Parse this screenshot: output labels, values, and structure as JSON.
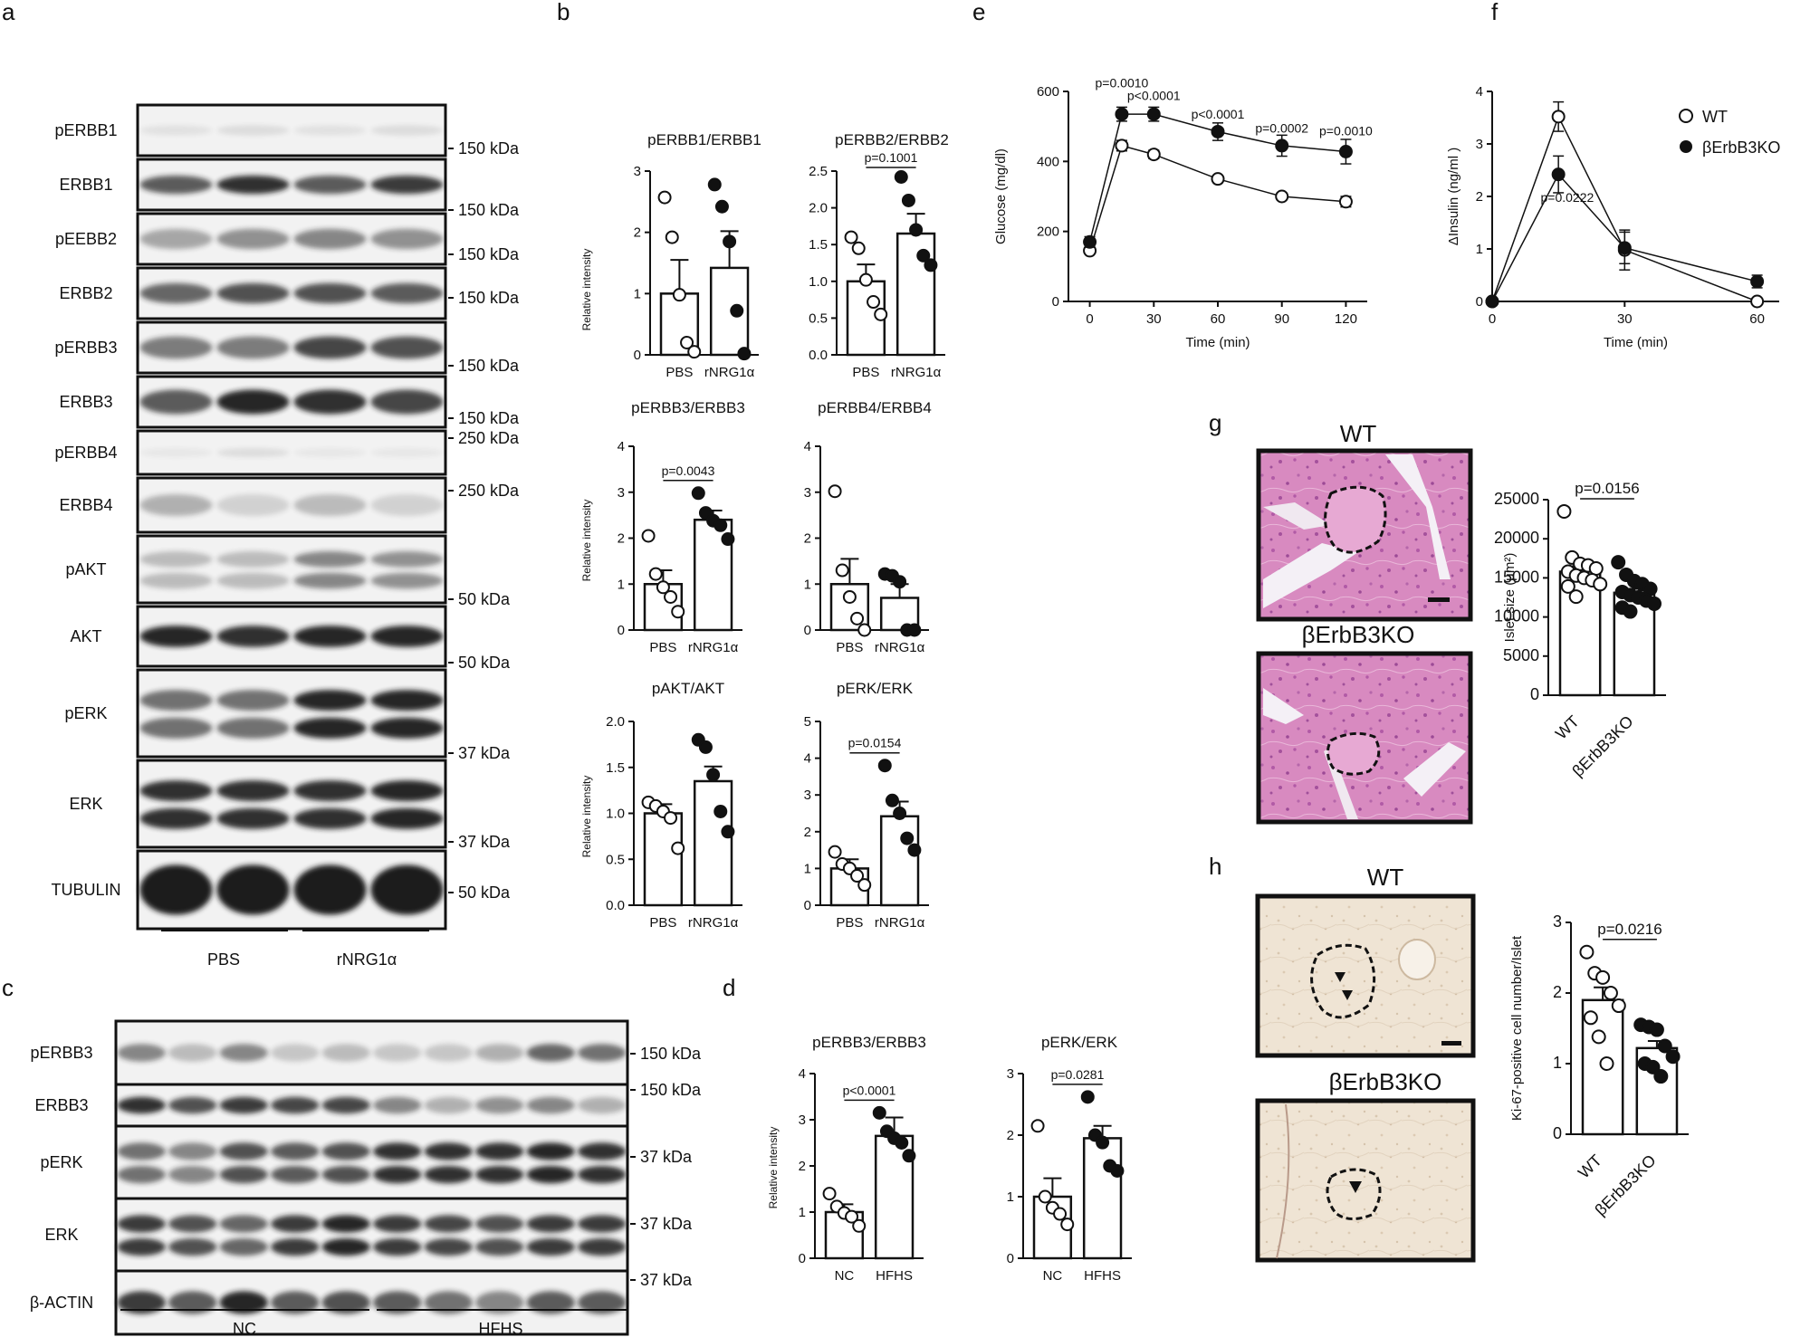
{
  "panels": {
    "a": {
      "letter": "a",
      "bands": [
        {
          "label": "pERBB1",
          "kda": [
            "150 kDa"
          ]
        },
        {
          "label": "ERBB1",
          "kda": [
            "150 kDa"
          ]
        },
        {
          "label": "pEEBB2",
          "kda": [
            "150 kDa"
          ]
        },
        {
          "label": "ERBB2",
          "kda": [
            "150 kDa"
          ]
        },
        {
          "label": "pERBB3",
          "kda": [
            "150 kDa"
          ]
        },
        {
          "label": "ERBB3",
          "kda": [
            "150 kDa"
          ]
        },
        {
          "label": "pERBB4",
          "kda": [
            "250 kDa"
          ]
        },
        {
          "label": "ERBB4",
          "kda": [
            "250 kDa"
          ]
        },
        {
          "label": "pAKT",
          "kda": [
            "50 kDa"
          ]
        },
        {
          "label": "AKT",
          "kda": [
            "50 kDa"
          ]
        },
        {
          "label": "pERK",
          "kda": [
            "37 kDa"
          ]
        },
        {
          "label": "ERK",
          "kda": [
            "37 kDa"
          ]
        },
        {
          "label": "TUBULIN",
          "kda": [
            "50 kDa"
          ]
        }
      ],
      "groups": [
        "PBS",
        "rNRG1α"
      ]
    },
    "b": {
      "letter": "b",
      "ylabel": "Relative intensity",
      "categories": [
        "PBS",
        "rNRG1α"
      ]
    },
    "c": {
      "letter": "c",
      "bands": [
        {
          "label": "pERBB3",
          "kda": "150 kDa"
        },
        {
          "label": "ERBB3",
          "kda": "150 kDa"
        },
        {
          "label": "pERK",
          "kda": "37 kDa"
        },
        {
          "label": "ERK",
          "kda": "37 kDa"
        },
        {
          "label": "β-ACTIN",
          "kda": "37 kDa"
        }
      ],
      "groups": [
        "NC",
        "HFHS"
      ]
    },
    "d": {
      "letter": "d",
      "ylabel": "Relative intensity",
      "categories": [
        "NC",
        "HFHS"
      ]
    },
    "e": {
      "letter": "e"
    },
    "f": {
      "letter": "f"
    },
    "g": {
      "letter": "g",
      "wt": "WT",
      "ko": "βErbB3KO"
    },
    "h": {
      "letter": "h",
      "wt": "WT",
      "ko": "βErbB3KO"
    }
  },
  "chart_data": [
    {
      "id": "b1",
      "type": "bar",
      "title": "pERBB1/ERBB1",
      "categories": [
        "PBS",
        "rNRG1α"
      ],
      "values": [
        1.0,
        1.42
      ],
      "error": [
        0.55,
        0.6
      ],
      "points": [
        [
          2.57,
          1.92,
          0.98,
          0.2,
          0.05
        ],
        [
          2.78,
          2.42,
          1.85,
          0.72,
          0.02
        ]
      ],
      "ylim": [
        0,
        3
      ],
      "yticks": [
        "0",
        "1",
        "2",
        "3"
      ],
      "pvalue": ""
    },
    {
      "id": "b2",
      "type": "bar",
      "title": "pERBB2/ERBB2",
      "categories": [
        "PBS",
        "rNRG1α"
      ],
      "values": [
        1.0,
        1.65
      ],
      "error": [
        0.23,
        0.27
      ],
      "points": [
        [
          1.6,
          1.45,
          1.02,
          0.72,
          0.55
        ],
        [
          2.42,
          2.1,
          1.7,
          1.35,
          1.22
        ]
      ],
      "ylim": [
        0,
        2.5
      ],
      "yticks": [
        "0.0",
        "0.5",
        "1.0",
        "1.5",
        "2.0",
        "2.5"
      ],
      "pvalue": "p=0.1001"
    },
    {
      "id": "b3",
      "type": "bar",
      "title": "pERBB3/ERBB3",
      "categories": [
        "PBS",
        "rNRG1α"
      ],
      "values": [
        1.0,
        2.4
      ],
      "error": [
        0.3,
        0.2
      ],
      "points": [
        [
          2.05,
          1.22,
          0.93,
          0.72,
          0.4
        ],
        [
          2.98,
          2.55,
          2.38,
          2.28,
          1.98
        ]
      ],
      "ylim": [
        0,
        4
      ],
      "yticks": [
        "0",
        "1",
        "2",
        "3",
        "4"
      ],
      "pvalue": "p=0.0043"
    },
    {
      "id": "b4",
      "type": "bar",
      "title": "pERBB4/ERBB4",
      "categories": [
        "PBS",
        "rNRG1α"
      ],
      "values": [
        1.0,
        0.7
      ],
      "error": [
        0.55,
        0.3
      ],
      "points": [
        [
          3.02,
          1.3,
          0.72,
          0.25,
          0.0
        ],
        [
          1.22,
          1.18,
          1.05,
          0.0,
          0.0
        ]
      ],
      "ylim": [
        0,
        4
      ],
      "yticks": [
        "0",
        "1",
        "2",
        "3",
        "4"
      ],
      "pvalue": ""
    },
    {
      "id": "b5",
      "type": "bar",
      "title": "pAKT/AKT",
      "categories": [
        "PBS",
        "rNRG1α"
      ],
      "values": [
        1.0,
        1.35
      ],
      "error": [
        0.1,
        0.16
      ],
      "points": [
        [
          1.12,
          1.08,
          1.02,
          0.95,
          0.62
        ],
        [
          1.8,
          1.72,
          1.42,
          1.02,
          0.8
        ]
      ],
      "ylim": [
        0,
        2.0
      ],
      "yticks": [
        "0.0",
        "0.5",
        "1.0",
        "1.5",
        "2.0"
      ],
      "pvalue": ""
    },
    {
      "id": "b6",
      "type": "bar",
      "title": "pERK/ERK",
      "categories": [
        "PBS",
        "rNRG1α"
      ],
      "values": [
        1.0,
        2.42
      ],
      "error": [
        0.25,
        0.4
      ],
      "points": [
        [
          1.45,
          1.12,
          1.0,
          0.8,
          0.55
        ],
        [
          3.8,
          2.85,
          2.5,
          1.82,
          1.5
        ]
      ],
      "ylim": [
        0,
        5
      ],
      "yticks": [
        "0",
        "1",
        "2",
        "3",
        "4",
        "5"
      ],
      "pvalue": "p=0.0154"
    },
    {
      "id": "d1",
      "type": "bar",
      "title": "pERBB3/ERBB3",
      "categories": [
        "NC",
        "HFHS"
      ],
      "values": [
        1.0,
        2.65
      ],
      "error": [
        0.17,
        0.4
      ],
      "points": [
        [
          1.4,
          1.12,
          0.98,
          0.9,
          0.7
        ],
        [
          3.15,
          2.75,
          2.6,
          2.5,
          2.22
        ]
      ],
      "ylim": [
        0,
        4
      ],
      "yticks": [
        "0",
        "1",
        "2",
        "3",
        "4"
      ],
      "pvalue": "p<0.0001"
    },
    {
      "id": "d2",
      "type": "bar",
      "title": "pERK/ERK",
      "categories": [
        "NC",
        "HFHS"
      ],
      "values": [
        1.0,
        1.95
      ],
      "error": [
        0.3,
        0.2
      ],
      "points": [
        [
          2.15,
          1.0,
          0.82,
          0.72,
          0.55
        ],
        [
          2.62,
          2.0,
          1.88,
          1.5,
          1.42
        ]
      ],
      "ylim": [
        0,
        3
      ],
      "yticks": [
        "0",
        "1",
        "2",
        "3"
      ],
      "pvalue": "p=0.0281"
    },
    {
      "id": "e",
      "type": "line",
      "xlabel": "Time (min)",
      "ylabel": "Glucose (mg/dl)",
      "x": [
        0,
        15,
        30,
        60,
        90,
        120
      ],
      "xlim": [
        -10,
        130
      ],
      "ylim": [
        0,
        600
      ],
      "xticks": [
        "0",
        "30",
        "60",
        "90",
        "120"
      ],
      "yticks": [
        "0",
        "200",
        "400",
        "600"
      ],
      "series": [
        {
          "name": "WT",
          "filled": false,
          "values": [
            145,
            445,
            420,
            350,
            300,
            285
          ],
          "error": [
            8,
            15,
            12,
            10,
            10,
            15
          ]
        },
        {
          "name": "βErbB3KO",
          "filled": true,
          "values": [
            170,
            535,
            535,
            485,
            445,
            428
          ],
          "error": [
            15,
            20,
            20,
            25,
            30,
            35
          ]
        }
      ],
      "pvalues": [
        {
          "label": "p=0.0010",
          "x": 15,
          "y": 612
        },
        {
          "label": "p<0.0001",
          "x": 30,
          "y": 575
        },
        {
          "label": "p<0.0001",
          "x": 60,
          "y": 522
        },
        {
          "label": "p=0.0002",
          "x": 90,
          "y": 482
        },
        {
          "label": "p=0.0010",
          "x": 120,
          "y": 475
        }
      ]
    },
    {
      "id": "f",
      "type": "line",
      "xlabel": "Time (min)",
      "ylabel": "ΔInsulin (ng/ml  )",
      "x": [
        0,
        15,
        30,
        60
      ],
      "xlim": [
        0,
        65
      ],
      "ylim": [
        0,
        4
      ],
      "xticks": [
        "0",
        "30",
        "60"
      ],
      "yticks": [
        "0",
        "1",
        "2",
        "3",
        "4"
      ],
      "series": [
        {
          "name": "WT",
          "filled": false,
          "values": [
            0,
            3.52,
            0.98,
            0.0
          ],
          "error": [
            0,
            0.28,
            0.38,
            0
          ]
        },
        {
          "name": "βErbB3KO",
          "filled": true,
          "values": [
            0,
            2.42,
            1.02,
            0.38
          ],
          "error": [
            0,
            0.35,
            0.3,
            0.12
          ]
        }
      ],
      "pvalues": [
        {
          "label": "p=0.0222",
          "x": 17,
          "y": 1.9
        }
      ]
    },
    {
      "id": "g",
      "type": "bar",
      "ylabel": "Islet size (μm²)",
      "categories": [
        "WT",
        "βErbB3KO"
      ],
      "values": [
        15800,
        13100
      ],
      "error": [
        700,
        500
      ],
      "points": [
        [
          23500,
          17600,
          16800,
          16600,
          16200,
          15800,
          15300,
          15000,
          14700,
          14200,
          13900,
          12600
        ],
        [
          17000,
          15400,
          14600,
          14200,
          13600,
          13200,
          12800,
          12500,
          12100,
          11700,
          11200,
          10700
        ]
      ],
      "ylim": [
        0,
        25000
      ],
      "yticks": [
        "0",
        "5000",
        "10000",
        "15000",
        "20000",
        "25000"
      ],
      "pvalue": "p=0.0156"
    },
    {
      "id": "h",
      "type": "bar",
      "ylabel": "Ki-67-positive cell number/Islet",
      "categories": [
        "WT",
        "βErbB3KO"
      ],
      "values": [
        1.9,
        1.22
      ],
      "error": [
        0.18,
        0.1
      ],
      "points": [
        [
          2.58,
          2.28,
          2.22,
          2.0,
          1.82,
          1.65,
          1.38,
          1.0
        ],
        [
          1.55,
          1.52,
          1.48,
          1.25,
          1.1,
          1.0,
          0.95,
          0.82
        ]
      ],
      "ylim": [
        0,
        3
      ],
      "yticks": [
        "0",
        "1",
        "2",
        "3"
      ],
      "pvalue": "p=0.0216"
    }
  ],
  "legend_f": [
    "WT",
    "βErbB3KO"
  ],
  "colors": {
    "ink": "#111111",
    "blot": "#2a2a2a",
    "he_bg": "#d98fc2",
    "ihc_bg": "#eee3d3"
  }
}
